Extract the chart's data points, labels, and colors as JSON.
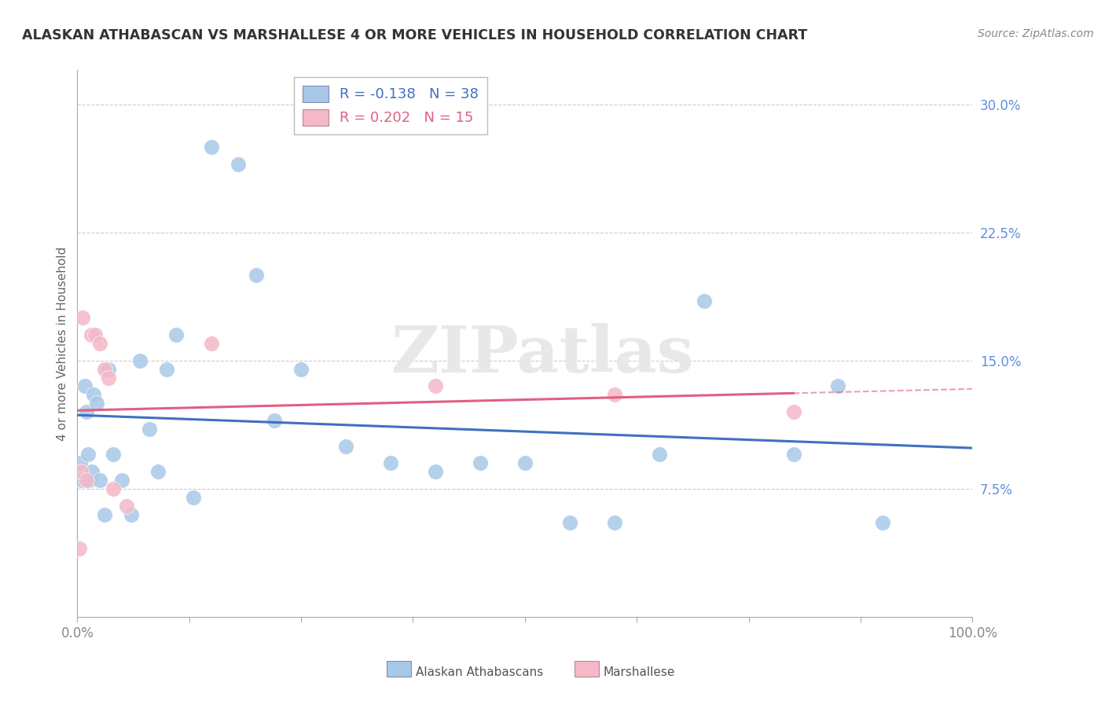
{
  "title": "ALASKAN ATHABASCAN VS MARSHALLESE 4 OR MORE VEHICLES IN HOUSEHOLD CORRELATION CHART",
  "source": "Source: ZipAtlas.com",
  "ylabel": "4 or more Vehicles in Household",
  "xlim": [
    0.0,
    100.0
  ],
  "ylim": [
    0.0,
    32.0
  ],
  "yticks": [
    0.0,
    7.5,
    15.0,
    22.5,
    30.0
  ],
  "xticks": [
    0.0,
    12.5,
    25.0,
    37.5,
    50.0,
    62.5,
    75.0,
    87.5,
    100.0
  ],
  "blue_R": -0.138,
  "blue_N": 38,
  "pink_R": 0.202,
  "pink_N": 15,
  "blue_scatter_color": "#A8C8E8",
  "blue_scatter_edge": "#A8C8E8",
  "pink_scatter_color": "#F4B8C8",
  "pink_scatter_edge": "#F4B8C8",
  "blue_line_color": "#4070C0",
  "pink_line_color": "#E06080",
  "background_color": "#FFFFFF",
  "grid_color": "#CCCCCC",
  "axis_color": "#AAAAAA",
  "ytick_color": "#6090E0",
  "xtick_color": "#888888",
  "title_color": "#333333",
  "source_color": "#888888",
  "ylabel_color": "#666666",
  "watermark_text": "ZIPatlas",
  "watermark_color": "#E8E8E8",
  "blue_x": [
    0.3,
    0.5,
    0.8,
    1.0,
    1.2,
    1.4,
    1.6,
    1.8,
    2.2,
    2.5,
    3.0,
    3.5,
    4.0,
    5.0,
    6.0,
    7.0,
    8.0,
    9.0,
    10.0,
    11.0,
    13.0,
    15.0,
    18.0,
    20.0,
    22.0,
    25.0,
    30.0,
    35.0,
    40.0,
    45.0,
    50.0,
    55.0,
    60.0,
    65.0,
    70.0,
    80.0,
    85.0,
    90.0
  ],
  "blue_y": [
    9.0,
    8.0,
    13.5,
    12.0,
    9.5,
    8.0,
    8.5,
    13.0,
    12.5,
    8.0,
    6.0,
    14.5,
    9.5,
    8.0,
    6.0,
    15.0,
    11.0,
    8.5,
    14.5,
    16.5,
    7.0,
    27.5,
    26.5,
    20.0,
    11.5,
    14.5,
    10.0,
    9.0,
    8.5,
    9.0,
    9.0,
    5.5,
    5.5,
    9.5,
    18.5,
    9.5,
    13.5,
    5.5
  ],
  "pink_x": [
    0.2,
    0.4,
    0.6,
    1.0,
    1.5,
    2.0,
    2.5,
    3.0,
    3.5,
    4.0,
    5.5,
    15.0,
    40.0,
    60.0,
    80.0
  ],
  "pink_y": [
    4.0,
    8.5,
    17.5,
    8.0,
    16.5,
    16.5,
    16.0,
    14.5,
    14.0,
    7.5,
    6.5,
    16.0,
    13.5,
    13.0,
    12.0
  ],
  "legend_blue_label_R": "R = ",
  "legend_blue_R_val": "-0.138",
  "legend_blue_N": "N = 38",
  "legend_pink_label_R": "R = ",
  "legend_pink_R_val": "0.202",
  "legend_pink_N": "N = 15",
  "bottom_legend_blue": "Alaskan Athabascans",
  "bottom_legend_pink": "Marshallese"
}
